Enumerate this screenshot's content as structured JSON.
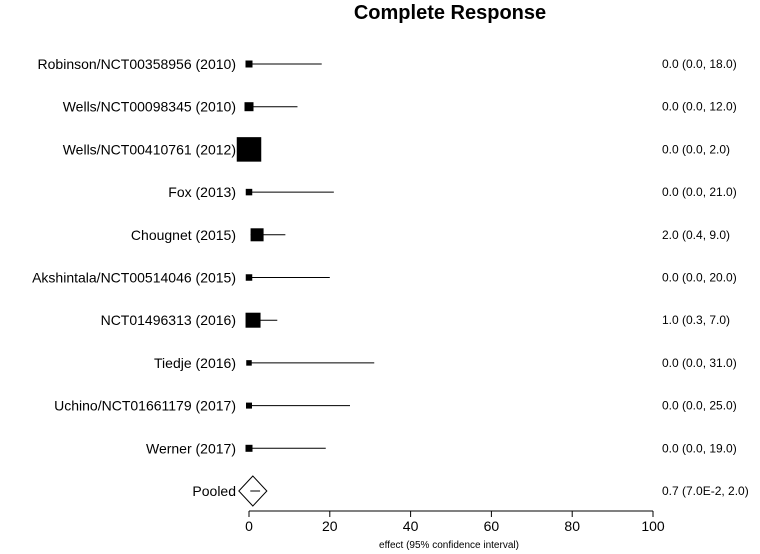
{
  "chart_data": {
    "type": "forest",
    "title": "Complete Response",
    "xlabel": "effect (95% confidence interval)",
    "xlim": [
      0,
      100
    ],
    "xticks": [
      0,
      20,
      40,
      60,
      80,
      100
    ],
    "grid": false,
    "studies": [
      {
        "label": "Robinson/NCT00358956 (2010)",
        "estimate": 0.0,
        "lower": 0.0,
        "upper": 18.0,
        "ci_text": "0.0 (0.0, 18.0)",
        "weight": 1
      },
      {
        "label": "Wells/NCT00098345 (2010)",
        "estimate": 0.0,
        "lower": 0.0,
        "upper": 12.0,
        "ci_text": "0.0 (0.0, 12.0)",
        "weight": 1.4
      },
      {
        "label": "Wells/NCT00410761 (2012)",
        "estimate": 0.0,
        "lower": 0.0,
        "upper": 2.0,
        "ci_text": "0.0 (0.0, 2.0)",
        "weight": 4.5
      },
      {
        "label": "Fox (2013)",
        "estimate": 0.0,
        "lower": 0.0,
        "upper": 21.0,
        "ci_text": "0.0 (0.0, 21.0)",
        "weight": 0.9
      },
      {
        "label": "Chougnet (2015)",
        "estimate": 2.0,
        "lower": 0.4,
        "upper": 9.0,
        "ci_text": "2.0 (0.4, 9.0)",
        "weight": 2.2
      },
      {
        "label": "Akshintala/NCT00514046 (2015)",
        "estimate": 0.0,
        "lower": 0.0,
        "upper": 20.0,
        "ci_text": "0.0 (0.0, 20.0)",
        "weight": 0.9
      },
      {
        "label": "NCT01496313 (2016)",
        "estimate": 1.0,
        "lower": 0.3,
        "upper": 7.0,
        "ci_text": "1.0 (0.3, 7.0)",
        "weight": 2.6
      },
      {
        "label": "Tiedje (2016)",
        "estimate": 0.0,
        "lower": 0.0,
        "upper": 31.0,
        "ci_text": "0.0 (0.0, 31.0)",
        "weight": 0.7
      },
      {
        "label": "Uchino/NCT01661179 (2017)",
        "estimate": 0.0,
        "lower": 0.0,
        "upper": 25.0,
        "ci_text": "0.0 (0.0, 25.0)",
        "weight": 0.8
      },
      {
        "label": "Werner (2017)",
        "estimate": 0.0,
        "lower": 0.0,
        "upper": 19.0,
        "ci_text": "0.0 (0.0, 19.0)",
        "weight": 1
      }
    ],
    "pooled": {
      "label": "Pooled",
      "estimate": 0.7,
      "lower": 0.07,
      "upper": 2.0,
      "ci_text": "0.7 (7.0E-2, 2.0)"
    }
  }
}
